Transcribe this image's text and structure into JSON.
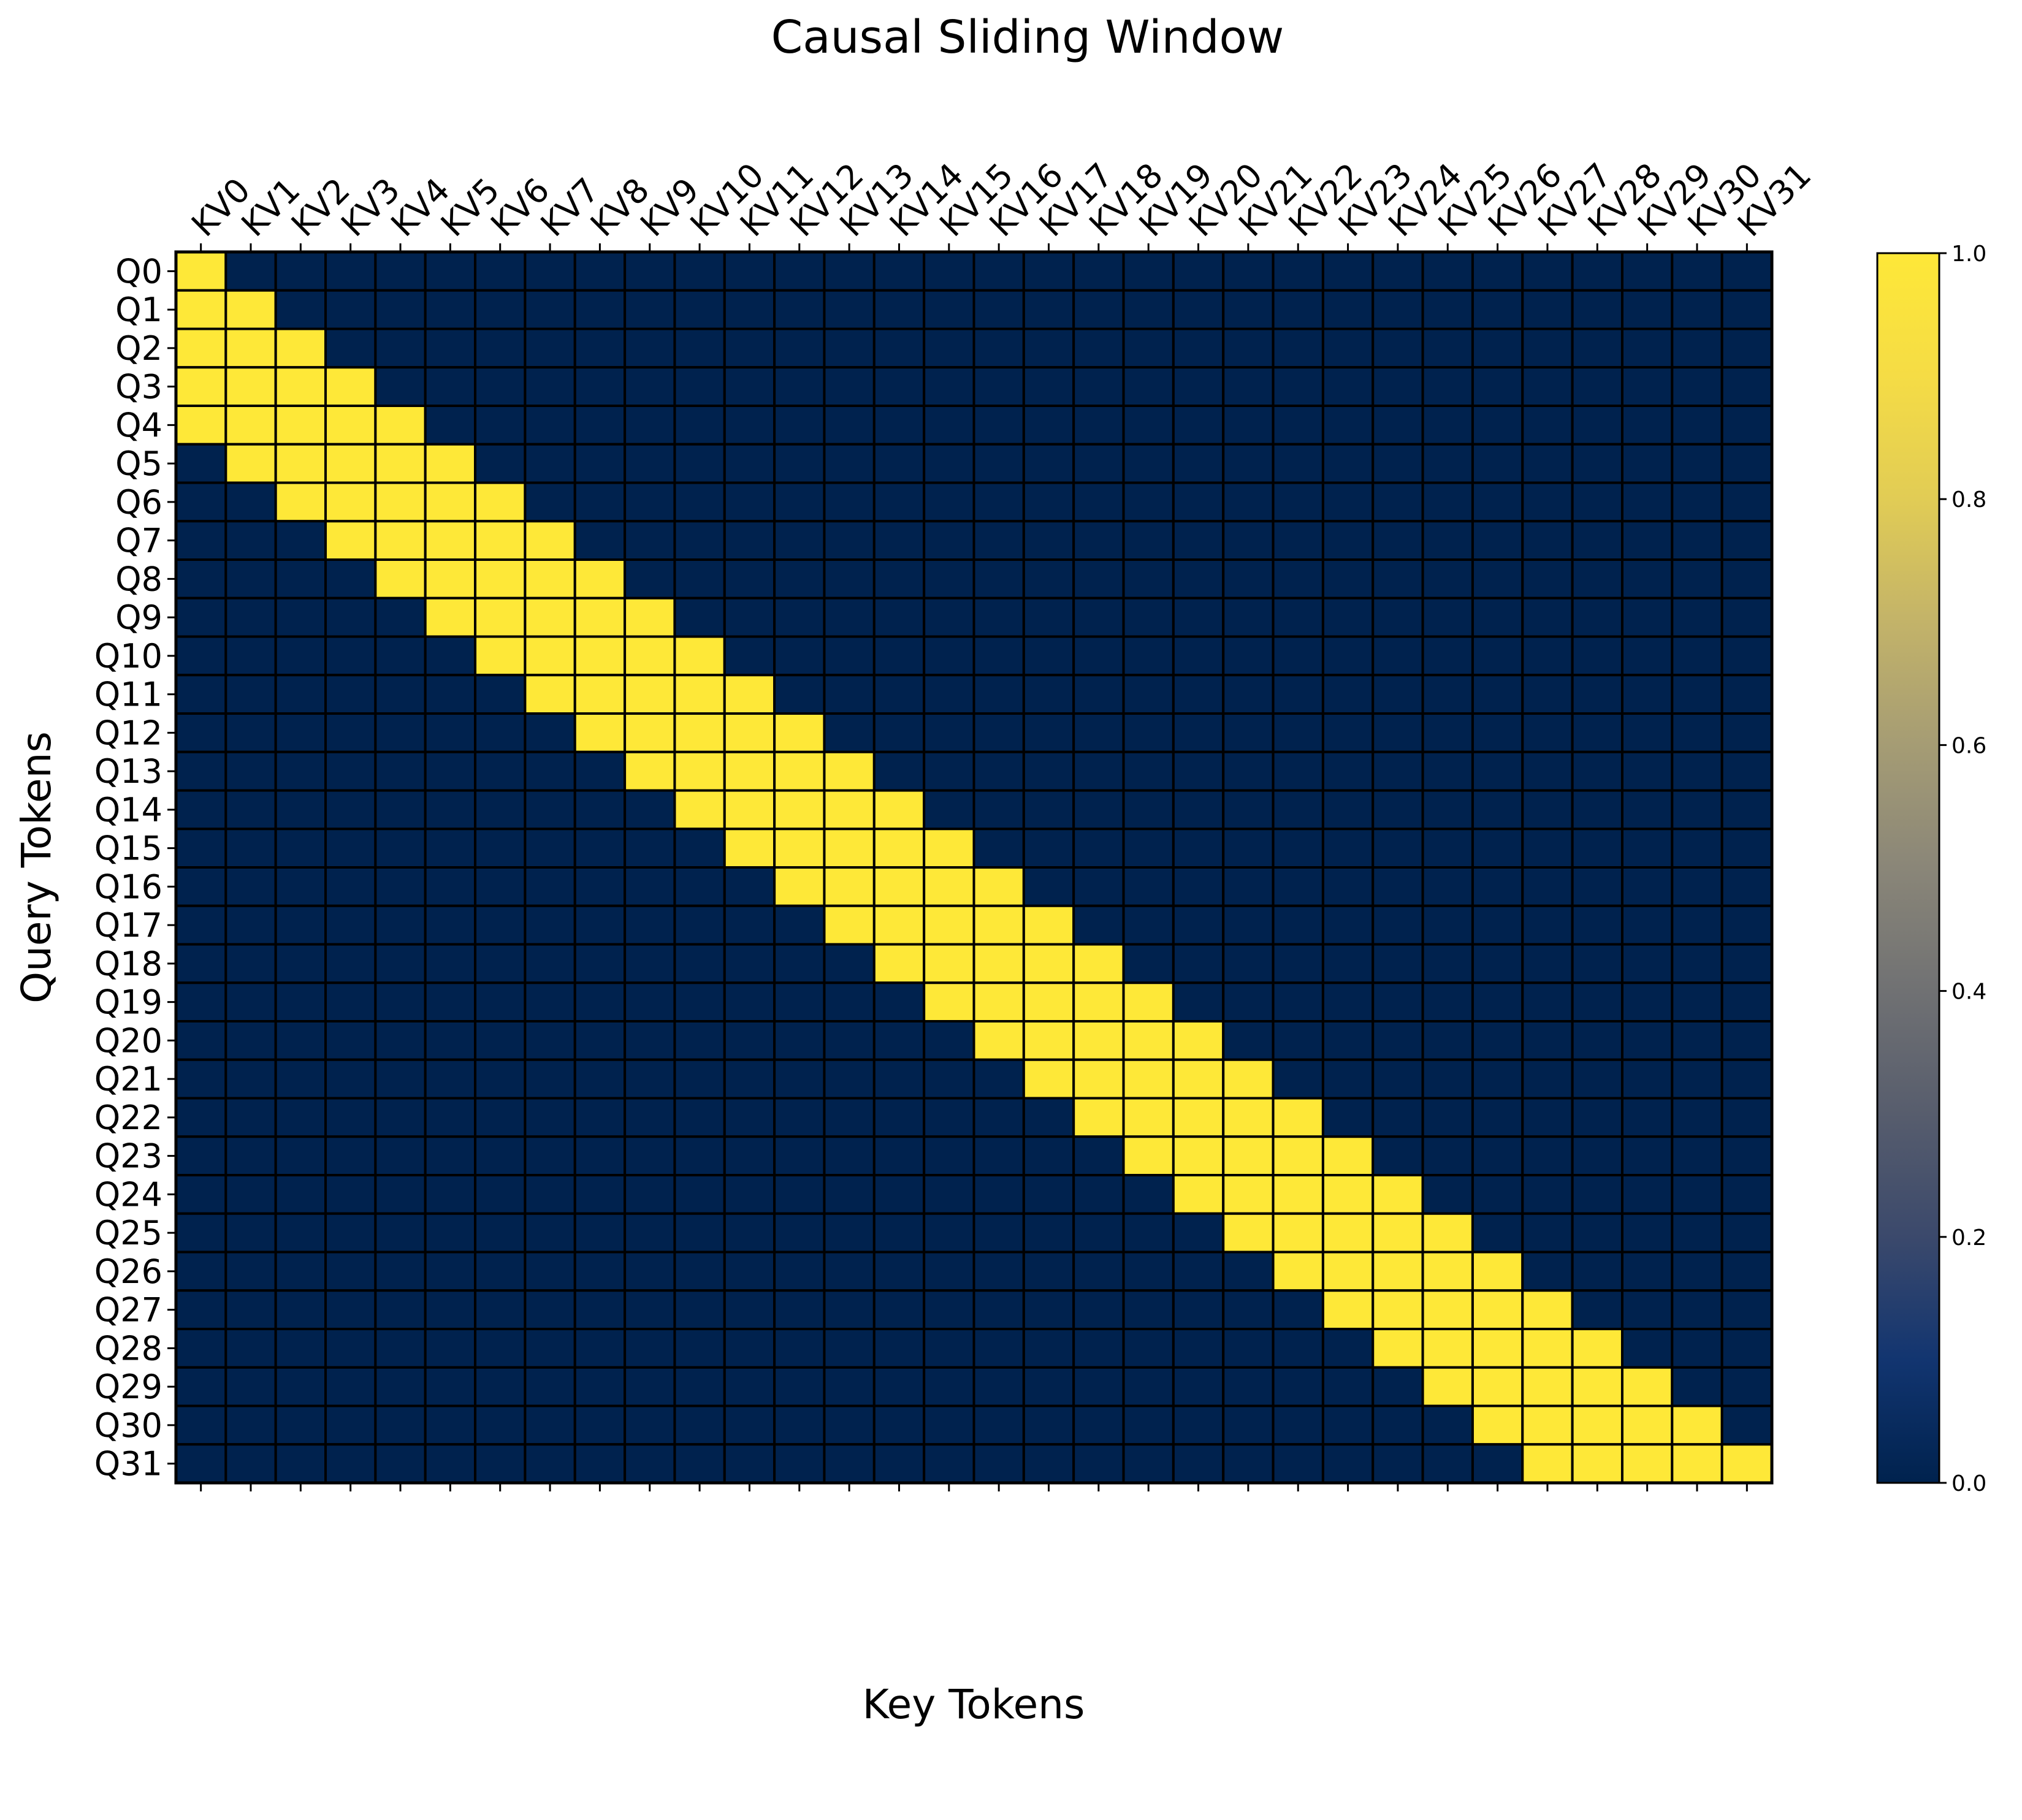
{
  "chart_data": {
    "type": "heatmap",
    "title": "Causal Sliding Window",
    "xlabel": "Key Tokens",
    "ylabel": "Query Tokens",
    "x_tick_labels": [
      "KV0",
      "KV1",
      "KV2",
      "KV3",
      "KV4",
      "KV5",
      "KV6",
      "KV7",
      "KV8",
      "KV9",
      "KV10",
      "KV11",
      "KV12",
      "KV13",
      "KV14",
      "KV15",
      "KV16",
      "KV17",
      "KV18",
      "KV19",
      "KV20",
      "KV21",
      "KV22",
      "KV23",
      "KV24",
      "KV25",
      "KV26",
      "KV27",
      "KV28",
      "KV29",
      "KV30",
      "KV31"
    ],
    "y_tick_labels": [
      "Q0",
      "Q1",
      "Q2",
      "Q3",
      "Q4",
      "Q5",
      "Q6",
      "Q7",
      "Q8",
      "Q9",
      "Q10",
      "Q11",
      "Q12",
      "Q13",
      "Q14",
      "Q15",
      "Q16",
      "Q17",
      "Q18",
      "Q19",
      "Q20",
      "Q21",
      "Q22",
      "Q23",
      "Q24",
      "Q25",
      "Q26",
      "Q27",
      "Q28",
      "Q29",
      "Q30",
      "Q31"
    ],
    "window_size": 5,
    "values": [
      [
        1,
        0,
        0,
        0,
        0,
        0,
        0,
        0,
        0,
        0,
        0,
        0,
        0,
        0,
        0,
        0,
        0,
        0,
        0,
        0,
        0,
        0,
        0,
        0,
        0,
        0,
        0,
        0,
        0,
        0,
        0,
        0
      ],
      [
        1,
        1,
        0,
        0,
        0,
        0,
        0,
        0,
        0,
        0,
        0,
        0,
        0,
        0,
        0,
        0,
        0,
        0,
        0,
        0,
        0,
        0,
        0,
        0,
        0,
        0,
        0,
        0,
        0,
        0,
        0,
        0
      ],
      [
        1,
        1,
        1,
        0,
        0,
        0,
        0,
        0,
        0,
        0,
        0,
        0,
        0,
        0,
        0,
        0,
        0,
        0,
        0,
        0,
        0,
        0,
        0,
        0,
        0,
        0,
        0,
        0,
        0,
        0,
        0,
        0
      ],
      [
        1,
        1,
        1,
        1,
        0,
        0,
        0,
        0,
        0,
        0,
        0,
        0,
        0,
        0,
        0,
        0,
        0,
        0,
        0,
        0,
        0,
        0,
        0,
        0,
        0,
        0,
        0,
        0,
        0,
        0,
        0,
        0
      ],
      [
        1,
        1,
        1,
        1,
        1,
        0,
        0,
        0,
        0,
        0,
        0,
        0,
        0,
        0,
        0,
        0,
        0,
        0,
        0,
        0,
        0,
        0,
        0,
        0,
        0,
        0,
        0,
        0,
        0,
        0,
        0,
        0
      ],
      [
        0,
        1,
        1,
        1,
        1,
        1,
        0,
        0,
        0,
        0,
        0,
        0,
        0,
        0,
        0,
        0,
        0,
        0,
        0,
        0,
        0,
        0,
        0,
        0,
        0,
        0,
        0,
        0,
        0,
        0,
        0,
        0
      ],
      [
        0,
        0,
        1,
        1,
        1,
        1,
        1,
        0,
        0,
        0,
        0,
        0,
        0,
        0,
        0,
        0,
        0,
        0,
        0,
        0,
        0,
        0,
        0,
        0,
        0,
        0,
        0,
        0,
        0,
        0,
        0,
        0
      ],
      [
        0,
        0,
        0,
        1,
        1,
        1,
        1,
        1,
        0,
        0,
        0,
        0,
        0,
        0,
        0,
        0,
        0,
        0,
        0,
        0,
        0,
        0,
        0,
        0,
        0,
        0,
        0,
        0,
        0,
        0,
        0,
        0
      ],
      [
        0,
        0,
        0,
        0,
        1,
        1,
        1,
        1,
        1,
        0,
        0,
        0,
        0,
        0,
        0,
        0,
        0,
        0,
        0,
        0,
        0,
        0,
        0,
        0,
        0,
        0,
        0,
        0,
        0,
        0,
        0,
        0
      ],
      [
        0,
        0,
        0,
        0,
        0,
        1,
        1,
        1,
        1,
        1,
        0,
        0,
        0,
        0,
        0,
        0,
        0,
        0,
        0,
        0,
        0,
        0,
        0,
        0,
        0,
        0,
        0,
        0,
        0,
        0,
        0,
        0
      ],
      [
        0,
        0,
        0,
        0,
        0,
        0,
        1,
        1,
        1,
        1,
        1,
        0,
        0,
        0,
        0,
        0,
        0,
        0,
        0,
        0,
        0,
        0,
        0,
        0,
        0,
        0,
        0,
        0,
        0,
        0,
        0,
        0
      ],
      [
        0,
        0,
        0,
        0,
        0,
        0,
        0,
        1,
        1,
        1,
        1,
        1,
        0,
        0,
        0,
        0,
        0,
        0,
        0,
        0,
        0,
        0,
        0,
        0,
        0,
        0,
        0,
        0,
        0,
        0,
        0,
        0
      ],
      [
        0,
        0,
        0,
        0,
        0,
        0,
        0,
        0,
        1,
        1,
        1,
        1,
        1,
        0,
        0,
        0,
        0,
        0,
        0,
        0,
        0,
        0,
        0,
        0,
        0,
        0,
        0,
        0,
        0,
        0,
        0,
        0
      ],
      [
        0,
        0,
        0,
        0,
        0,
        0,
        0,
        0,
        0,
        1,
        1,
        1,
        1,
        1,
        0,
        0,
        0,
        0,
        0,
        0,
        0,
        0,
        0,
        0,
        0,
        0,
        0,
        0,
        0,
        0,
        0,
        0
      ],
      [
        0,
        0,
        0,
        0,
        0,
        0,
        0,
        0,
        0,
        0,
        1,
        1,
        1,
        1,
        1,
        0,
        0,
        0,
        0,
        0,
        0,
        0,
        0,
        0,
        0,
        0,
        0,
        0,
        0,
        0,
        0,
        0
      ],
      [
        0,
        0,
        0,
        0,
        0,
        0,
        0,
        0,
        0,
        0,
        0,
        1,
        1,
        1,
        1,
        1,
        0,
        0,
        0,
        0,
        0,
        0,
        0,
        0,
        0,
        0,
        0,
        0,
        0,
        0,
        0,
        0
      ],
      [
        0,
        0,
        0,
        0,
        0,
        0,
        0,
        0,
        0,
        0,
        0,
        0,
        1,
        1,
        1,
        1,
        1,
        0,
        0,
        0,
        0,
        0,
        0,
        0,
        0,
        0,
        0,
        0,
        0,
        0,
        0,
        0
      ],
      [
        0,
        0,
        0,
        0,
        0,
        0,
        0,
        0,
        0,
        0,
        0,
        0,
        0,
        1,
        1,
        1,
        1,
        1,
        0,
        0,
        0,
        0,
        0,
        0,
        0,
        0,
        0,
        0,
        0,
        0,
        0,
        0
      ],
      [
        0,
        0,
        0,
        0,
        0,
        0,
        0,
        0,
        0,
        0,
        0,
        0,
        0,
        0,
        1,
        1,
        1,
        1,
        1,
        0,
        0,
        0,
        0,
        0,
        0,
        0,
        0,
        0,
        0,
        0,
        0,
        0
      ],
      [
        0,
        0,
        0,
        0,
        0,
        0,
        0,
        0,
        0,
        0,
        0,
        0,
        0,
        0,
        0,
        1,
        1,
        1,
        1,
        1,
        0,
        0,
        0,
        0,
        0,
        0,
        0,
        0,
        0,
        0,
        0,
        0
      ],
      [
        0,
        0,
        0,
        0,
        0,
        0,
        0,
        0,
        0,
        0,
        0,
        0,
        0,
        0,
        0,
        0,
        1,
        1,
        1,
        1,
        1,
        0,
        0,
        0,
        0,
        0,
        0,
        0,
        0,
        0,
        0,
        0
      ],
      [
        0,
        0,
        0,
        0,
        0,
        0,
        0,
        0,
        0,
        0,
        0,
        0,
        0,
        0,
        0,
        0,
        0,
        1,
        1,
        1,
        1,
        1,
        0,
        0,
        0,
        0,
        0,
        0,
        0,
        0,
        0,
        0
      ],
      [
        0,
        0,
        0,
        0,
        0,
        0,
        0,
        0,
        0,
        0,
        0,
        0,
        0,
        0,
        0,
        0,
        0,
        0,
        1,
        1,
        1,
        1,
        1,
        0,
        0,
        0,
        0,
        0,
        0,
        0,
        0,
        0
      ],
      [
        0,
        0,
        0,
        0,
        0,
        0,
        0,
        0,
        0,
        0,
        0,
        0,
        0,
        0,
        0,
        0,
        0,
        0,
        0,
        1,
        1,
        1,
        1,
        1,
        0,
        0,
        0,
        0,
        0,
        0,
        0,
        0
      ],
      [
        0,
        0,
        0,
        0,
        0,
        0,
        0,
        0,
        0,
        0,
        0,
        0,
        0,
        0,
        0,
        0,
        0,
        0,
        0,
        0,
        1,
        1,
        1,
        1,
        1,
        0,
        0,
        0,
        0,
        0,
        0,
        0
      ],
      [
        0,
        0,
        0,
        0,
        0,
        0,
        0,
        0,
        0,
        0,
        0,
        0,
        0,
        0,
        0,
        0,
        0,
        0,
        0,
        0,
        0,
        1,
        1,
        1,
        1,
        1,
        0,
        0,
        0,
        0,
        0,
        0
      ],
      [
        0,
        0,
        0,
        0,
        0,
        0,
        0,
        0,
        0,
        0,
        0,
        0,
        0,
        0,
        0,
        0,
        0,
        0,
        0,
        0,
        0,
        0,
        1,
        1,
        1,
        1,
        1,
        0,
        0,
        0,
        0,
        0
      ],
      [
        0,
        0,
        0,
        0,
        0,
        0,
        0,
        0,
        0,
        0,
        0,
        0,
        0,
        0,
        0,
        0,
        0,
        0,
        0,
        0,
        0,
        0,
        0,
        1,
        1,
        1,
        1,
        1,
        0,
        0,
        0,
        0
      ],
      [
        0,
        0,
        0,
        0,
        0,
        0,
        0,
        0,
        0,
        0,
        0,
        0,
        0,
        0,
        0,
        0,
        0,
        0,
        0,
        0,
        0,
        0,
        0,
        0,
        1,
        1,
        1,
        1,
        1,
        0,
        0,
        0
      ],
      [
        0,
        0,
        0,
        0,
        0,
        0,
        0,
        0,
        0,
        0,
        0,
        0,
        0,
        0,
        0,
        0,
        0,
        0,
        0,
        0,
        0,
        0,
        0,
        0,
        0,
        1,
        1,
        1,
        1,
        1,
        0,
        0
      ],
      [
        0,
        0,
        0,
        0,
        0,
        0,
        0,
        0,
        0,
        0,
        0,
        0,
        0,
        0,
        0,
        0,
        0,
        0,
        0,
        0,
        0,
        0,
        0,
        0,
        0,
        0,
        1,
        1,
        1,
        1,
        1,
        0
      ],
      [
        0,
        0,
        0,
        0,
        0,
        0,
        0,
        0,
        0,
        0,
        0,
        0,
        0,
        0,
        0,
        0,
        0,
        0,
        0,
        0,
        0,
        0,
        0,
        0,
        0,
        0,
        0,
        1,
        1,
        1,
        1,
        1
      ]
    ],
    "colormap": "cividis",
    "color_low": "#00224e",
    "color_high": "#fee838",
    "vmin": 0,
    "vmax": 1,
    "cell_border_color": "#000000",
    "colorbar": {
      "ticks": [
        0.0,
        0.2,
        0.4,
        0.6,
        0.8,
        1.0
      ],
      "tick_labels": [
        "0.0",
        "0.2",
        "0.4",
        "0.6",
        "0.8",
        "1.0"
      ]
    }
  }
}
